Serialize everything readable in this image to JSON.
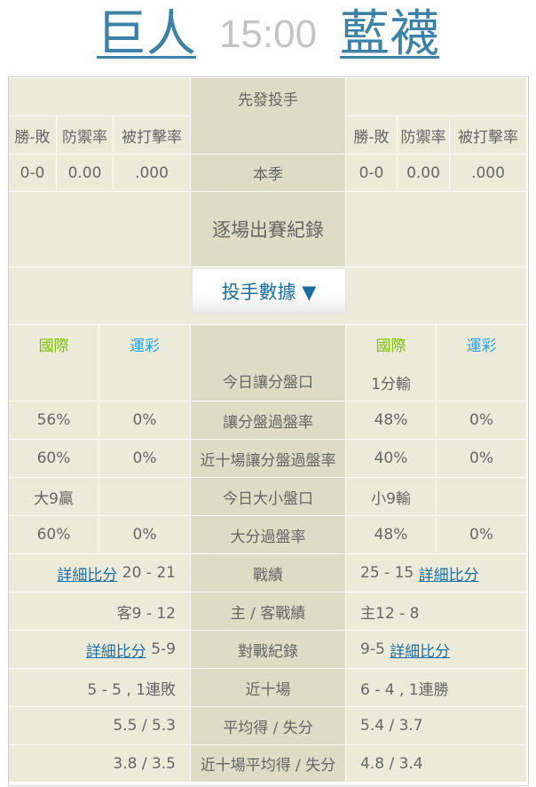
{
  "header": {
    "away_team": "巨人",
    "time": "15:00",
    "home_team": "藍襪"
  },
  "pitcher": {
    "title": "先發投手",
    "cols": [
      "勝-敗",
      "防禦率",
      "被打擊率"
    ],
    "season_label": "本季",
    "away": [
      "0-0",
      "0.00",
      ".000"
    ],
    "home": [
      "0-0",
      "0.00",
      ".000"
    ],
    "game_log": "逐場出賽紀錄",
    "stats_button": "投手數據 ▼"
  },
  "odds": {
    "col_intl": "國際",
    "col_lottery": "運彩",
    "colors": {
      "intl": "#7cc200",
      "lottery": "#2aa3e0"
    },
    "rows": [
      {
        "label": "今日讓分盤口",
        "away": [
          "",
          ""
        ],
        "home": [
          "1分輸",
          ""
        ]
      },
      {
        "label": "讓分盤過盤率",
        "away": [
          "56%",
          "0%"
        ],
        "home": [
          "48%",
          "0%"
        ]
      },
      {
        "label": "近十場讓分盤過盤率",
        "away": [
          "60%",
          "0%"
        ],
        "home": [
          "40%",
          "0%"
        ]
      },
      {
        "label": "今日大小盤口",
        "away": [
          "大9贏",
          ""
        ],
        "home": [
          "小9輸",
          ""
        ]
      },
      {
        "label": "大分過盤率",
        "away": [
          "60%",
          "0%"
        ],
        "home": [
          "48%",
          "0%"
        ]
      }
    ]
  },
  "records": {
    "link": "詳細比分",
    "rows": [
      {
        "label": "戰績",
        "away": "20 - 21",
        "home": "25 - 15"
      },
      {
        "label": "主 / 客戰績",
        "away": "客9 - 12",
        "home": "主12 - 8"
      },
      {
        "label": "對戰紀錄",
        "away": "5-9",
        "home": "9-5"
      },
      {
        "label": "近十場",
        "away": "5 - 5 , 1連敗",
        "home": "6 - 4 , 1連勝"
      },
      {
        "label": "平均得 / 失分",
        "away": "5.5 / 5.3",
        "home": "5.4 / 3.7"
      },
      {
        "label": "近十場平均得 / 失分",
        "away": "3.8 / 3.5",
        "home": "4.8 / 3.4"
      }
    ]
  }
}
